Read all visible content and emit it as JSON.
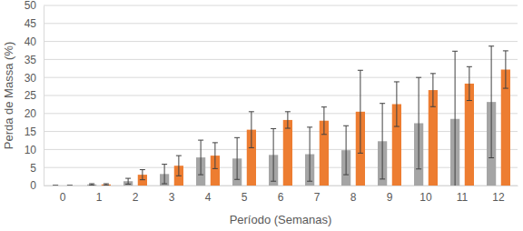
{
  "chart_data": {
    "type": "bar",
    "x_label": "Período (Semanas)",
    "y_label": "Perda de Massa (%)",
    "categories": [
      "0",
      "1",
      "2",
      "3",
      "4",
      "5",
      "6",
      "7",
      "8",
      "9",
      "10",
      "11",
      "12"
    ],
    "series": [
      {
        "color": "#a5a5a5",
        "values": [
          0,
          0.3,
          1.2,
          3.2,
          7.8,
          7.5,
          8.5,
          8.7,
          9.8,
          12.3,
          17.3,
          18.5,
          23.2
        ],
        "errors": [
          0,
          0.2,
          0.8,
          2.7,
          4.8,
          5.8,
          7.3,
          7.5,
          6.8,
          10.5,
          12.7,
          18.8,
          15.5
        ]
      },
      {
        "color": "#ed7d31",
        "values": [
          0,
          0.3,
          3.0,
          5.5,
          8.3,
          15.5,
          18.2,
          18.0,
          20.5,
          22.6,
          26.5,
          28.3,
          32.2
        ],
        "errors": [
          0,
          0.2,
          1.4,
          2.8,
          3.6,
          5.0,
          2.3,
          3.8,
          11.5,
          6.2,
          4.6,
          4.7,
          5.2
        ]
      }
    ],
    "ylim": [
      0,
      50
    ],
    "yticks": [
      0,
      5,
      10,
      15,
      20,
      25,
      30,
      35,
      40,
      45,
      50
    ],
    "grid": true
  }
}
